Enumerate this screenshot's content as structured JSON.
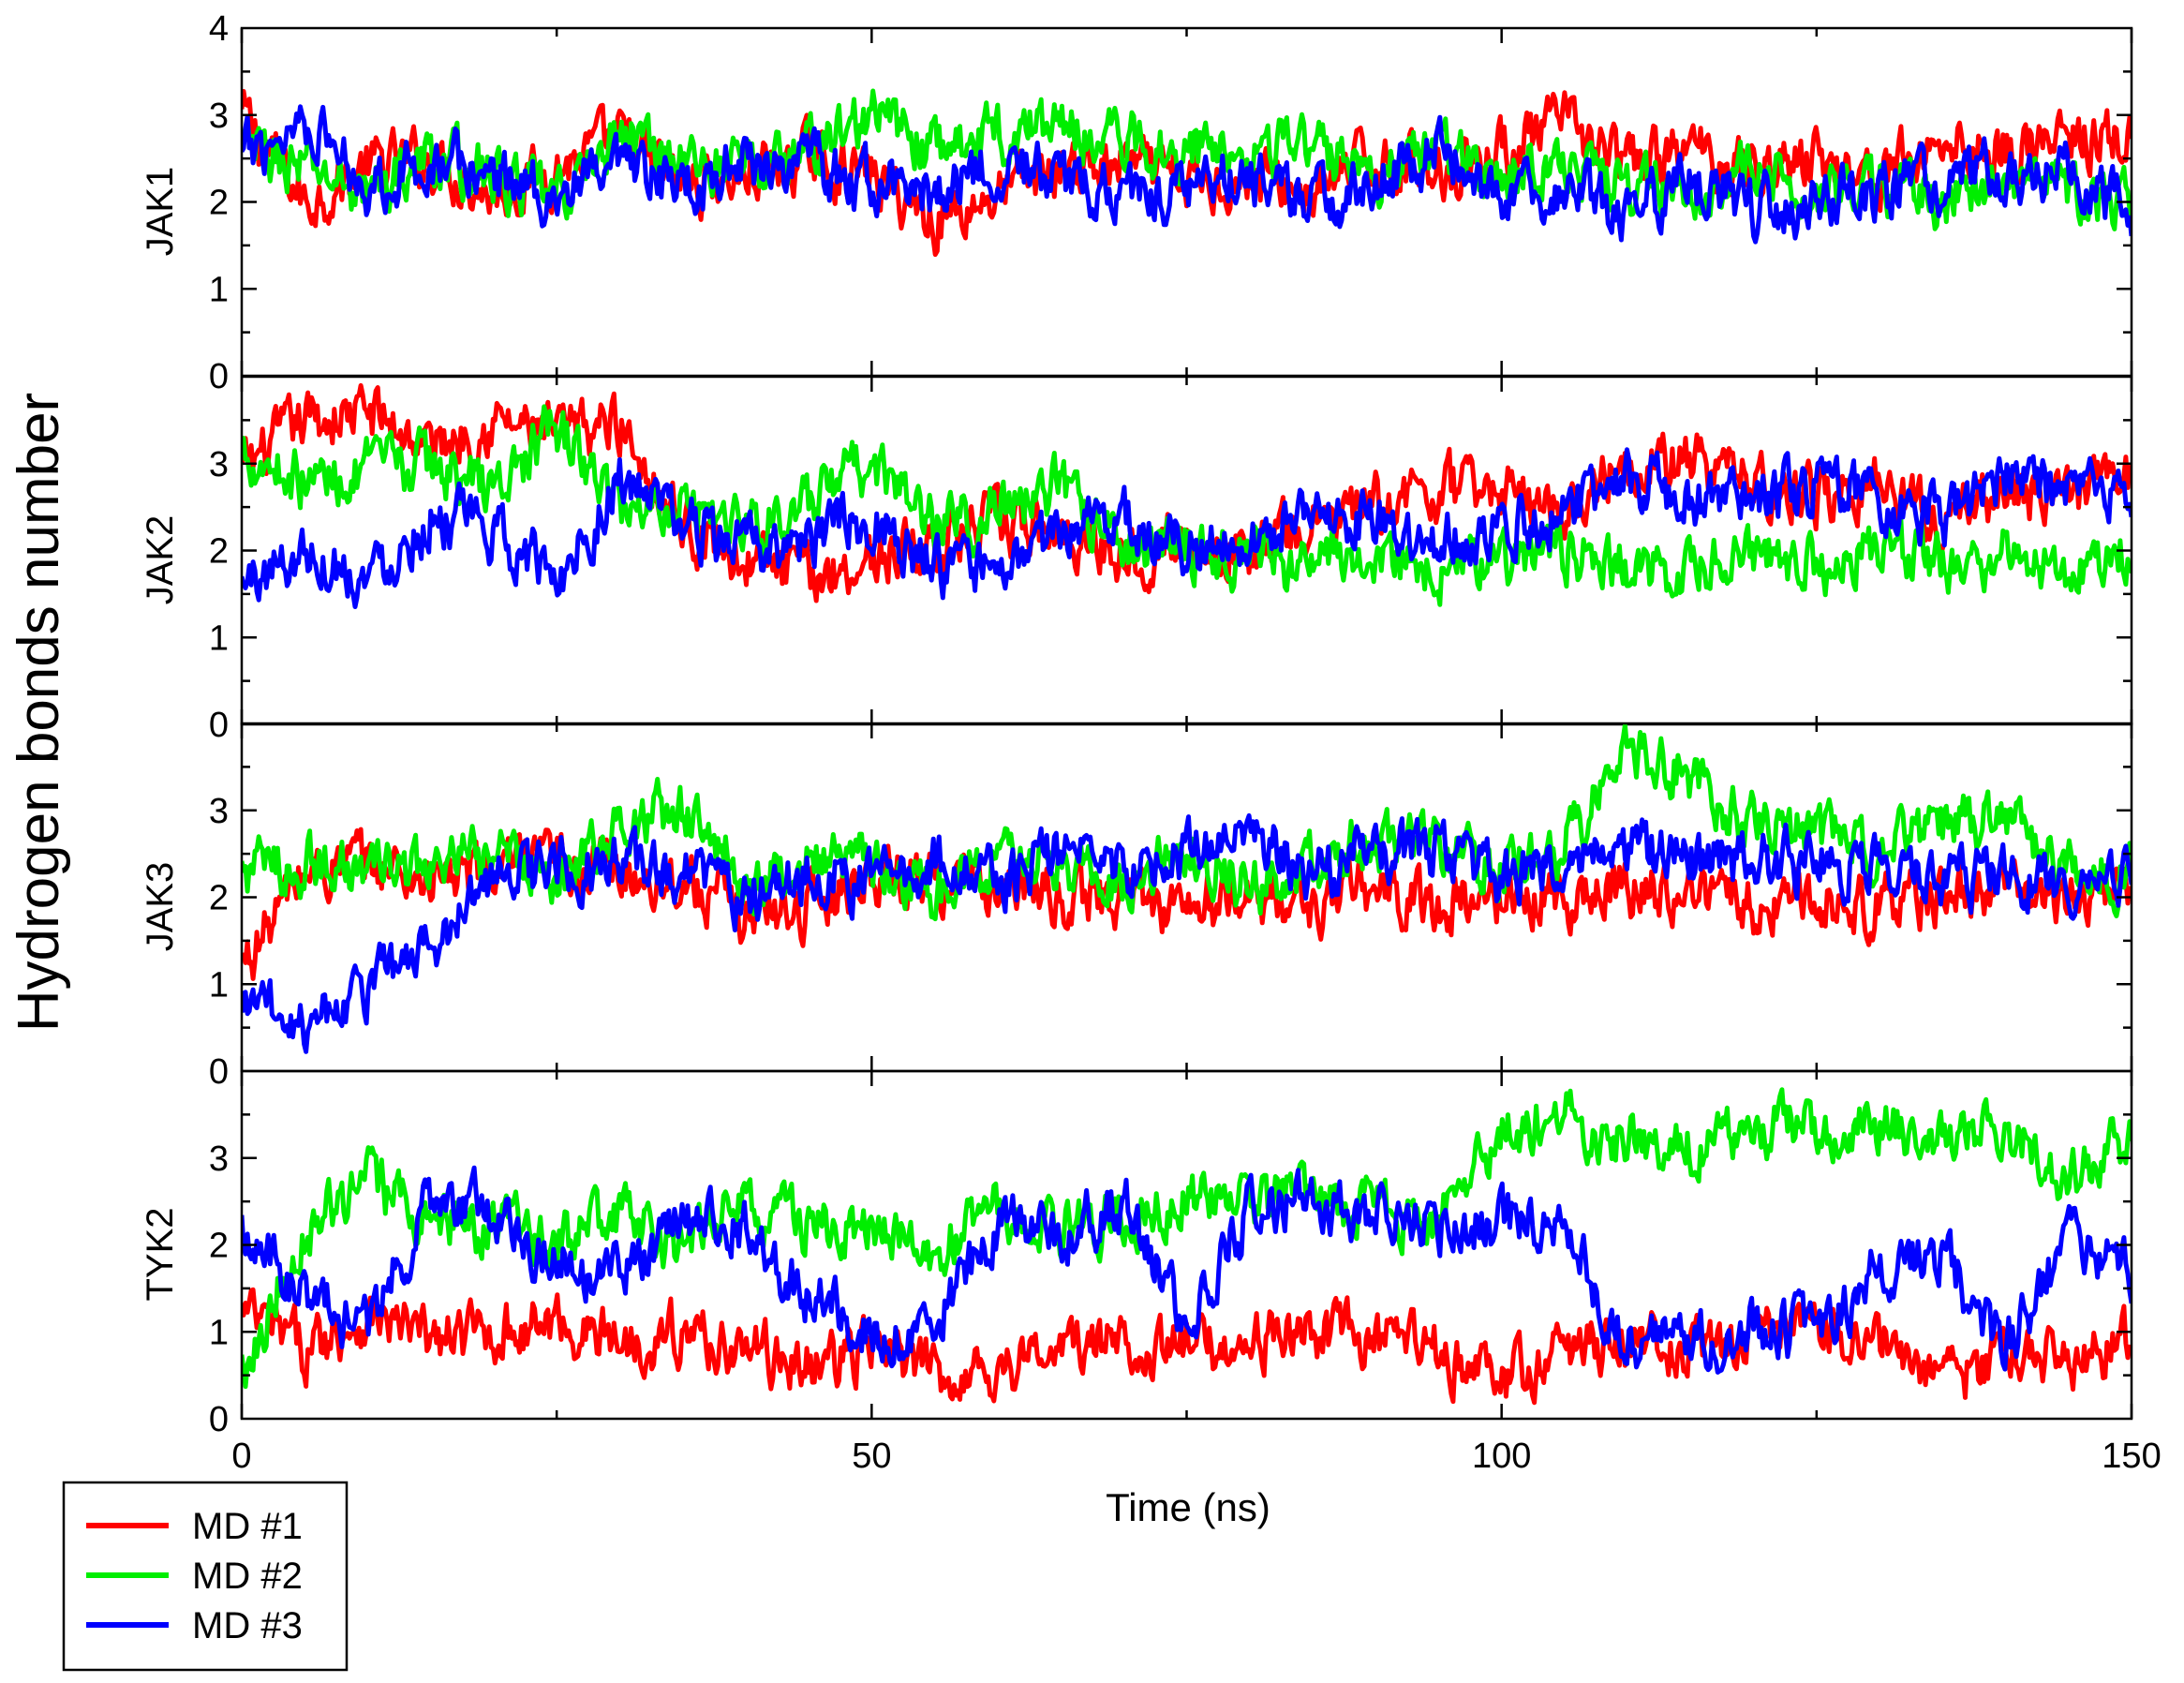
{
  "chart_data": {
    "type": "line",
    "ylabel": "Hydrogen bonds number",
    "xlabel": "Time (ns)",
    "xlim": [
      0,
      150
    ],
    "ylim": [
      0,
      4
    ],
    "x_ticks": [
      "0",
      "50",
      "100",
      "150"
    ],
    "x_minor_ticks": [
      25,
      75,
      125
    ],
    "y_ticks": [
      "0",
      "1",
      "2",
      "3",
      "4"
    ],
    "legend": {
      "position": "bottom-left",
      "entries": [
        "MD #1",
        "MD #2",
        "MD #3"
      ]
    },
    "colors": {
      "MD #1": "#ff0000",
      "MD #2": "#00ee00",
      "MD #3": "#0000ff"
    },
    "panels": [
      {
        "name": "JAK1",
        "series": [
          {
            "name": "MD #1",
            "x": [
              0,
              5,
              10,
              15,
              20,
              25,
              30,
              35,
              40,
              45,
              50,
              55,
              60,
              65,
              70,
              75,
              80,
              85,
              90,
              95,
              100,
              105,
              110,
              115,
              120,
              125,
              130,
              135,
              140,
              145,
              150
            ],
            "y": [
              3.0,
              2.0,
              2.4,
              2.5,
              2.1,
              2.4,
              2.7,
              2.2,
              2.3,
              2.5,
              2.3,
              1.8,
              2.1,
              2.4,
              2.4,
              2.2,
              2.3,
              2.1,
              2.5,
              2.4,
              2.6,
              2.9,
              2.4,
              2.6,
              2.4,
              2.5,
              2.3,
              2.7,
              2.6,
              2.7,
              2.7
            ]
          },
          {
            "name": "MD #2",
            "x": [
              0,
              5,
              10,
              15,
              20,
              25,
              30,
              35,
              40,
              45,
              50,
              55,
              60,
              65,
              70,
              75,
              80,
              85,
              90,
              95,
              100,
              105,
              110,
              115,
              120,
              125,
              130,
              135,
              140,
              145,
              150
            ],
            "y": [
              2.6,
              2.4,
              2.1,
              2.5,
              2.3,
              2.0,
              2.8,
              2.5,
              2.4,
              2.6,
              3.0,
              2.6,
              2.8,
              2.9,
              2.7,
              2.6,
              2.7,
              2.6,
              2.4,
              2.6,
              2.3,
              2.5,
              2.1,
              2.2,
              2.3,
              2.1,
              2.2,
              2.0,
              2.3,
              2.1,
              2.0
            ]
          },
          {
            "name": "MD #3",
            "x": [
              0,
              5,
              10,
              15,
              20,
              25,
              30,
              35,
              40,
              45,
              50,
              55,
              60,
              65,
              70,
              75,
              80,
              85,
              90,
              95,
              100,
              105,
              110,
              115,
              120,
              125,
              130,
              135,
              140,
              145,
              150
            ],
            "y": [
              2.5,
              3.0,
              2.2,
              2.5,
              2.3,
              2.1,
              2.3,
              2.2,
              2.5,
              2.4,
              2.2,
              2.1,
              2.5,
              2.2,
              2.1,
              2.2,
              2.3,
              2.0,
              2.2,
              2.6,
              2.0,
              2.1,
              1.9,
              2.2,
              1.9,
              2.0,
              2.1,
              2.2,
              2.4,
              2.3,
              1.9
            ]
          }
        ]
      },
      {
        "name": "JAK2",
        "series": [
          {
            "name": "MD #1",
            "x": [
              0,
              5,
              10,
              15,
              20,
              25,
              30,
              35,
              40,
              45,
              50,
              55,
              60,
              65,
              70,
              75,
              80,
              85,
              90,
              95,
              100,
              105,
              110,
              115,
              120,
              125,
              130,
              135,
              140,
              145,
              150
            ],
            "y": [
              2.9,
              3.5,
              3.6,
              3.2,
              3.5,
              3.3,
              3.5,
              2.3,
              1.9,
              1.7,
              1.9,
              2.1,
              2.3,
              2.2,
              2.0,
              2.1,
              2.0,
              2.3,
              2.5,
              2.7,
              2.7,
              2.5,
              3.1,
              3.0,
              2.8,
              2.6,
              2.8,
              2.3,
              2.7,
              2.6,
              2.9
            ]
          },
          {
            "name": "MD #2",
            "x": [
              0,
              5,
              10,
              15,
              20,
              25,
              30,
              35,
              40,
              45,
              50,
              55,
              60,
              65,
              70,
              75,
              80,
              85,
              90,
              95,
              100,
              105,
              110,
              115,
              120,
              125,
              130,
              135,
              140,
              145,
              150
            ],
            "y": [
              3.2,
              2.8,
              2.9,
              3.0,
              2.7,
              3.4,
              2.5,
              2.6,
              2.3,
              2.5,
              3.0,
              2.3,
              2.5,
              2.7,
              2.1,
              2.1,
              1.9,
              1.8,
              2.0,
              1.8,
              1.9,
              2.0,
              1.8,
              1.7,
              2.0,
              1.8,
              2.1,
              1.8,
              2.0,
              1.8,
              2.1
            ]
          },
          {
            "name": "MD #3",
            "x": [
              0,
              5,
              10,
              15,
              20,
              25,
              30,
              35,
              40,
              45,
              50,
              55,
              60,
              65,
              70,
              75,
              80,
              85,
              90,
              95,
              100,
              105,
              110,
              115,
              120,
              125,
              130,
              135,
              140,
              145,
              150
            ],
            "y": [
              1.6,
              2.0,
              1.7,
              2.4,
              2.2,
              1.7,
              2.8,
              2.3,
              2.0,
              2.1,
              2.4,
              1.8,
              1.7,
              2.2,
              2.4,
              2.0,
              2.1,
              2.5,
              2.3,
              2.1,
              2.3,
              2.5,
              2.8,
              2.6,
              2.5,
              2.8,
              2.6,
              2.3,
              2.8,
              2.6,
              2.7
            ]
          }
        ]
      },
      {
        "name": "JAK3",
        "series": [
          {
            "name": "MD #1",
            "x": [
              0,
              5,
              10,
              15,
              20,
              25,
              30,
              35,
              40,
              45,
              50,
              55,
              60,
              65,
              70,
              75,
              80,
              85,
              90,
              95,
              100,
              105,
              110,
              115,
              120,
              125,
              130,
              135,
              140,
              145,
              150
            ],
            "y": [
              1.2,
              2.3,
              2.4,
              2.2,
              2.3,
              2.4,
              2.3,
              2.2,
              1.8,
              1.9,
              2.3,
              2.2,
              2.1,
              2.0,
              2.0,
              1.9,
              2.0,
              1.9,
              2.1,
              1.9,
              2.0,
              2.0,
              2.1,
              2.1,
              1.9,
              2.0,
              1.9,
              2.0,
              2.1,
              2.0,
              2.1
            ]
          },
          {
            "name": "MD #2",
            "x": [
              0,
              5,
              10,
              15,
              20,
              25,
              30,
              35,
              40,
              45,
              50,
              55,
              60,
              65,
              70,
              75,
              80,
              85,
              90,
              95,
              100,
              105,
              110,
              115,
              120,
              125,
              130,
              135,
              140,
              145,
              150
            ],
            "y": [
              2.3,
              2.4,
              2.3,
              2.3,
              2.5,
              2.3,
              2.8,
              3.0,
              2.2,
              2.4,
              2.4,
              2.0,
              2.5,
              2.4,
              2.2,
              2.6,
              2.1,
              2.4,
              2.7,
              2.5,
              2.3,
              2.6,
              3.7,
              3.4,
              2.8,
              2.7,
              2.6,
              2.8,
              2.9,
              2.3,
              2.3
            ]
          },
          {
            "name": "MD #3",
            "x": [
              0,
              5,
              10,
              15,
              20,
              25,
              30,
              35,
              40,
              45,
              50,
              55,
              60,
              65,
              70,
              75,
              80,
              85,
              90,
              95,
              100,
              105,
              110,
              115,
              120,
              125,
              130,
              135,
              140,
              145,
              150
            ],
            "y": [
              0.8,
              0.6,
              1.0,
              1.4,
              2.3,
              2.3,
              2.4,
              2.3,
              2.0,
              2.3,
              2.2,
              2.4,
              2.2,
              2.5,
              2.3,
              2.5,
              2.9,
              2.2,
              2.6,
              2.5,
              2.2,
              2.4,
              2.6,
              2.4,
              2.4,
              2.4,
              2.3,
              2.2,
              2.3,
              2.0,
              2.4
            ]
          }
        ]
      },
      {
        "name": "TYK2",
        "series": [
          {
            "name": "MD #1",
            "x": [
              0,
              5,
              10,
              15,
              20,
              25,
              30,
              35,
              40,
              45,
              50,
              55,
              60,
              65,
              70,
              75,
              80,
              85,
              90,
              95,
              100,
              105,
              110,
              115,
              120,
              125,
              130,
              135,
              140,
              145,
              150
            ],
            "y": [
              1.2,
              0.8,
              1.2,
              0.9,
              1.0,
              1.1,
              0.9,
              1.0,
              0.8,
              0.6,
              0.8,
              0.5,
              0.6,
              0.8,
              0.9,
              0.8,
              0.9,
              1.0,
              0.9,
              0.8,
              0.4,
              0.8,
              0.9,
              0.8,
              0.9,
              1.1,
              0.9,
              0.4,
              0.8,
              0.7,
              0.9
            ]
          },
          {
            "name": "MD #2",
            "x": [
              0,
              5,
              10,
              15,
              20,
              25,
              30,
              35,
              40,
              45,
              50,
              55,
              60,
              65,
              70,
              75,
              80,
              85,
              90,
              95,
              100,
              105,
              110,
              115,
              120,
              125,
              130,
              135,
              140,
              145,
              150
            ],
            "y": [
              0.6,
              2.2,
              2.7,
              2.3,
              2.2,
              2.0,
              2.3,
              2.0,
              2.5,
              2.2,
              2.1,
              1.9,
              2.4,
              2.2,
              2.3,
              2.6,
              2.6,
              2.5,
              2.4,
              2.3,
              3.3,
              3.5,
              3.2,
              3.1,
              3.3,
              3.4,
              3.4,
              3.3,
              3.3,
              2.7,
              3.2
            ]
          },
          {
            "name": "MD #3",
            "x": [
              0,
              5,
              10,
              15,
              20,
              25,
              30,
              35,
              40,
              45,
              50,
              55,
              60,
              65,
              70,
              75,
              80,
              85,
              90,
              95,
              100,
              105,
              110,
              115,
              120,
              125,
              130,
              135,
              140,
              145,
              150
            ],
            "y": [
              2.2,
              1.4,
              1.1,
              2.5,
              2.4,
              1.8,
              1.6,
              2.3,
              2.2,
              1.4,
              1.0,
              1.1,
              2.3,
              2.1,
              2.5,
              1.0,
              2.4,
              2.5,
              2.3,
              2.2,
              2.3,
              2.2,
              0.9,
              0.8,
              1.1,
              0.9,
              1.8,
              1.9,
              0.8,
              2.1,
              1.6
            ]
          }
        ]
      }
    ]
  }
}
